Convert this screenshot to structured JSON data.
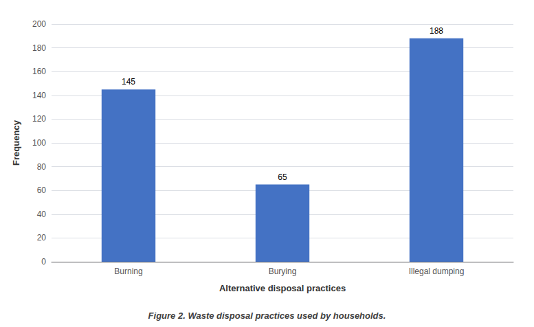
{
  "chart_data": {
    "type": "bar",
    "categories": [
      "Burning",
      "Burying",
      "Illegal dumping"
    ],
    "values": [
      145,
      65,
      188
    ],
    "color": "#4472C4",
    "xlabel": "Alternative disposal practices",
    "ylabel": "Frequency",
    "annotations": [
      "Figure 2. Waste disposal practices used by households."
    ],
    "ylim": [
      0,
      200
    ],
    "yticks": [
      0,
      20,
      40,
      60,
      80,
      100,
      120,
      140,
      160,
      180,
      200
    ],
    "grid": true,
    "data_labels": true
  }
}
